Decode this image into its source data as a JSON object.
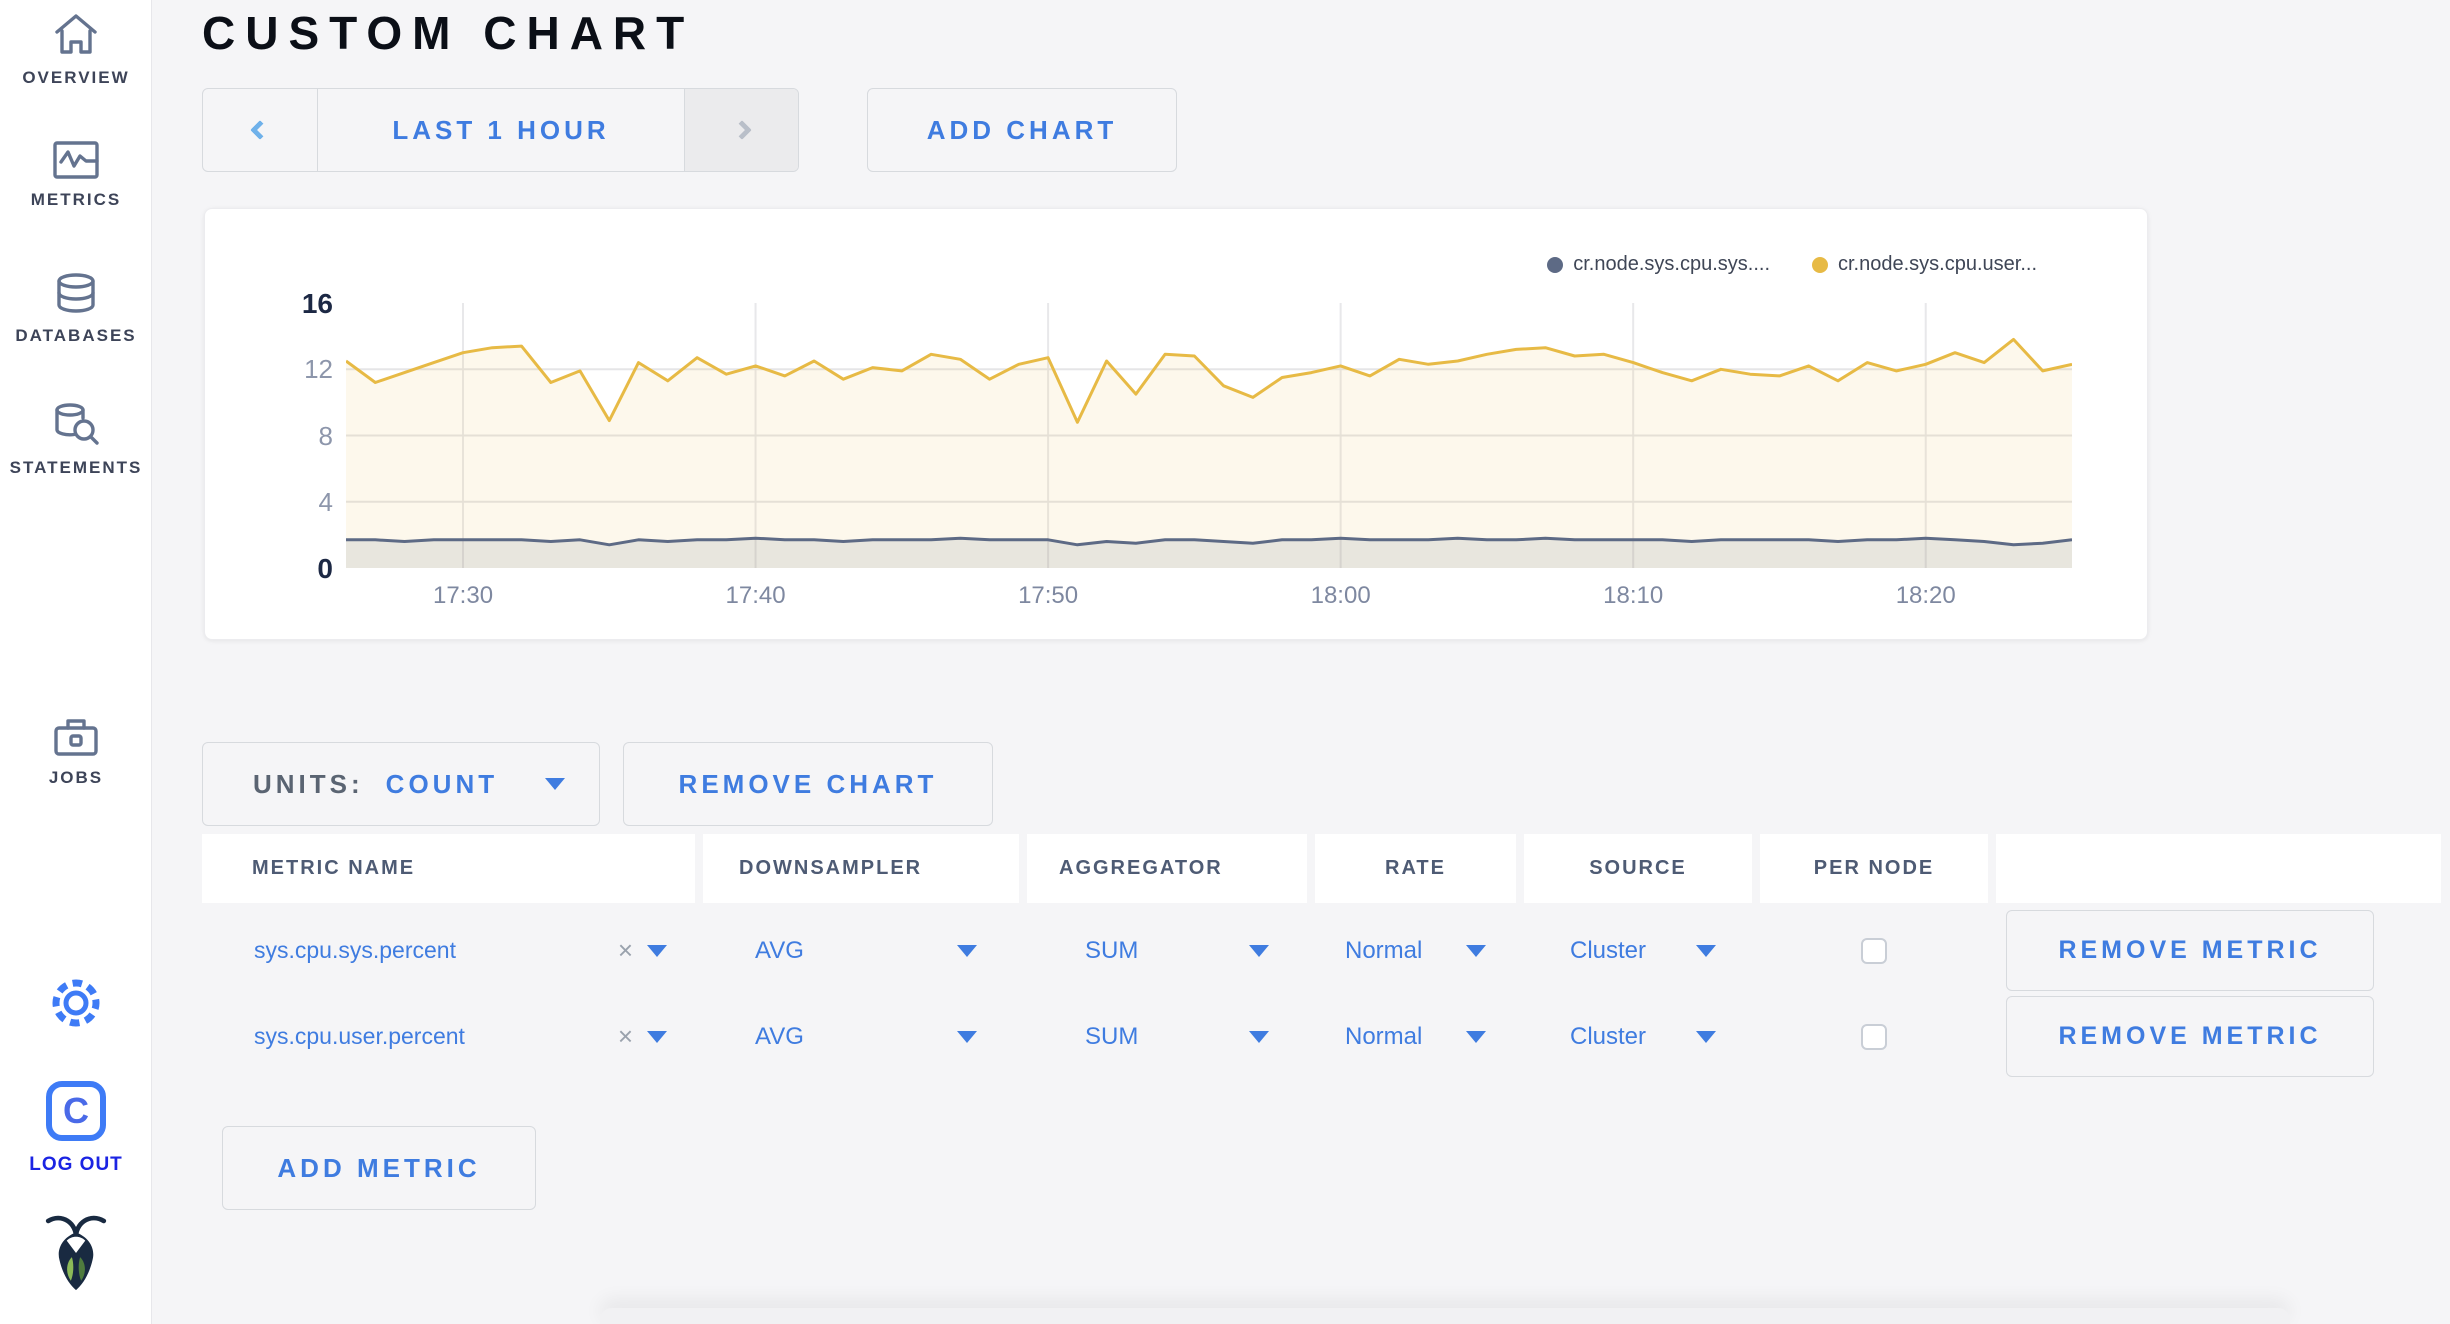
{
  "sidebar": {
    "items": [
      {
        "label": "OVERVIEW",
        "icon": "home-icon"
      },
      {
        "label": "METRICS",
        "icon": "metrics-icon"
      },
      {
        "label": "DATABASES",
        "icon": "databases-icon"
      },
      {
        "label": "STATEMENTS",
        "icon": "statements-icon"
      },
      {
        "label": "JOBS",
        "icon": "jobs-icon"
      }
    ],
    "logout_label": "LOG OUT"
  },
  "header": {
    "title": "CUSTOM CHART"
  },
  "controls": {
    "time_range_label": "LAST 1 HOUR",
    "add_chart_label": "ADD CHART"
  },
  "units_bar": {
    "units_label": "UNITS:",
    "units_value": "COUNT",
    "remove_chart_label": "REMOVE CHART"
  },
  "chart_data": {
    "type": "line",
    "title": "",
    "units": "count",
    "grid": true,
    "legend_position": "top-right",
    "ylim": [
      0,
      16
    ],
    "y_ticks": [
      0,
      4,
      8,
      12,
      16
    ],
    "y_ticks_strong": [
      0,
      16
    ],
    "x_tick_labels": [
      "17:30",
      "17:40",
      "17:50",
      "18:00",
      "18:10",
      "18:20"
    ],
    "x": [
      "17:26",
      "17:27",
      "17:28",
      "17:29",
      "17:30",
      "17:31",
      "17:32",
      "17:33",
      "17:34",
      "17:35",
      "17:36",
      "17:37",
      "17:38",
      "17:39",
      "17:40",
      "17:41",
      "17:42",
      "17:43",
      "17:44",
      "17:45",
      "17:46",
      "17:47",
      "17:48",
      "17:49",
      "17:50",
      "17:51",
      "17:52",
      "17:53",
      "17:54",
      "17:55",
      "17:56",
      "17:57",
      "17:58",
      "17:59",
      "18:00",
      "18:01",
      "18:02",
      "18:03",
      "18:04",
      "18:05",
      "18:06",
      "18:07",
      "18:08",
      "18:09",
      "18:10",
      "18:11",
      "18:12",
      "18:13",
      "18:14",
      "18:15",
      "18:16",
      "18:17",
      "18:18",
      "18:19",
      "18:20",
      "18:21",
      "18:22",
      "18:23",
      "18:24",
      "18:25"
    ],
    "series": [
      {
        "name": "cr.node.sys.cpu.sys....",
        "color": "#5d6a85",
        "fill": "rgba(93,106,133,0.13)",
        "values": [
          1.7,
          1.7,
          1.6,
          1.7,
          1.7,
          1.7,
          1.7,
          1.6,
          1.7,
          1.4,
          1.7,
          1.6,
          1.7,
          1.7,
          1.8,
          1.7,
          1.7,
          1.6,
          1.7,
          1.7,
          1.7,
          1.8,
          1.7,
          1.7,
          1.7,
          1.4,
          1.6,
          1.5,
          1.7,
          1.7,
          1.6,
          1.5,
          1.7,
          1.7,
          1.8,
          1.7,
          1.7,
          1.7,
          1.8,
          1.7,
          1.7,
          1.8,
          1.7,
          1.7,
          1.7,
          1.7,
          1.6,
          1.7,
          1.7,
          1.7,
          1.7,
          1.6,
          1.7,
          1.7,
          1.8,
          1.7,
          1.6,
          1.4,
          1.5,
          1.7
        ]
      },
      {
        "name": "cr.node.sys.cpu.user...",
        "color": "#e7ba45",
        "fill": "rgba(231,186,69,0.10)",
        "values": [
          12.5,
          11.2,
          11.8,
          12.4,
          13.0,
          13.3,
          13.4,
          11.2,
          11.9,
          8.9,
          12.4,
          11.3,
          12.7,
          11.7,
          12.2,
          11.6,
          12.5,
          11.4,
          12.1,
          11.9,
          12.9,
          12.6,
          11.4,
          12.3,
          12.7,
          8.8,
          12.5,
          10.5,
          12.9,
          12.8,
          11.0,
          10.3,
          11.5,
          11.8,
          12.2,
          11.6,
          12.6,
          12.3,
          12.5,
          12.9,
          13.2,
          13.3,
          12.8,
          12.9,
          12.4,
          11.8,
          11.3,
          12.0,
          11.7,
          11.6,
          12.2,
          11.3,
          12.4,
          11.9,
          12.3,
          13.0,
          12.4,
          13.8,
          11.9,
          12.3
        ]
      }
    ]
  },
  "table": {
    "columns": [
      "METRIC NAME",
      "DOWNSAMPLER",
      "AGGREGATOR",
      "RATE",
      "SOURCE",
      "PER NODE",
      ""
    ],
    "clear_glyph": "×",
    "rows": [
      {
        "name": "sys.cpu.sys.percent",
        "downsampler": "AVG",
        "aggregator": "SUM",
        "rate": "Normal",
        "source": "Cluster",
        "per_node_checked": false,
        "remove_label": "REMOVE METRIC"
      },
      {
        "name": "sys.cpu.user.percent",
        "downsampler": "AVG",
        "aggregator": "SUM",
        "rate": "Normal",
        "source": "Cluster",
        "per_node_checked": false,
        "remove_label": "REMOVE METRIC"
      }
    ],
    "add_metric_label": "ADD METRIC"
  }
}
